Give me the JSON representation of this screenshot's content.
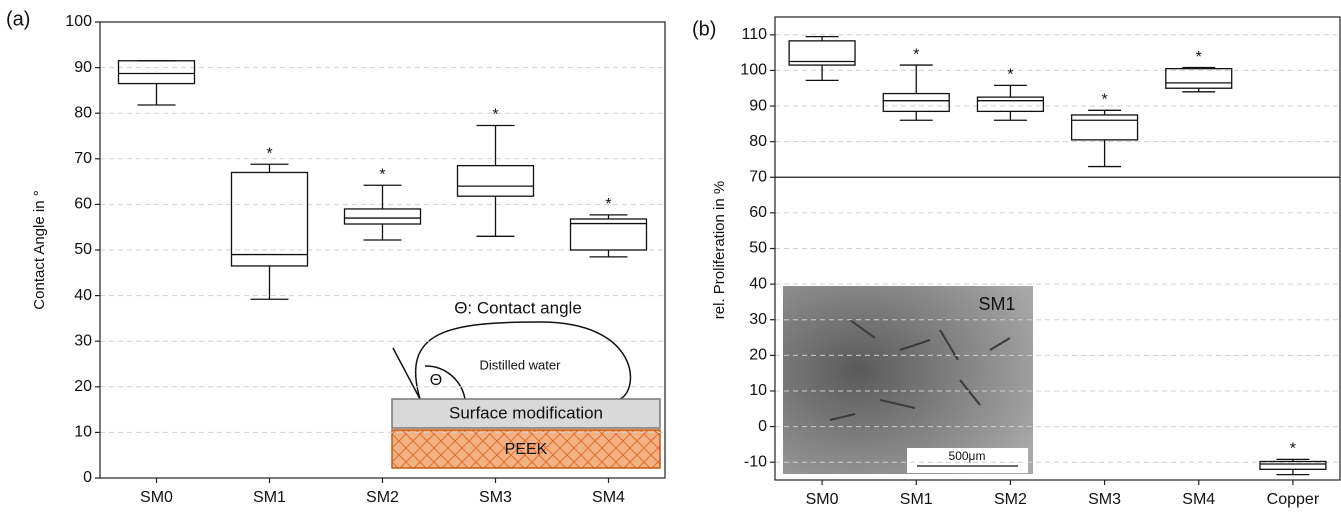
{
  "chart_data": [
    {
      "type": "box",
      "panel_label": "(a)",
      "y_label": "Contact Angle in °",
      "categories": [
        "SM0",
        "SM1",
        "SM2",
        "SM3",
        "SM4"
      ],
      "min": [
        81.8,
        39.2,
        52.2,
        53,
        48.5
      ],
      "q1": [
        86.5,
        46.5,
        55.7,
        61.8,
        50
      ],
      "median": [
        88.7,
        49,
        57,
        64,
        55.8
      ],
      "q3": [
        91.5,
        67,
        59,
        68.5,
        56.8
      ],
      "max": [
        91.5,
        68.8,
        64.2,
        77.3,
        57.7
      ],
      "markers": [
        null,
        "*",
        "*",
        "*",
        "*"
      ],
      "ylim": [
        0,
        100
      ],
      "yticks": [
        0,
        10,
        20,
        30,
        40,
        50,
        60,
        70,
        80,
        90,
        100
      ],
      "grid": true,
      "inset": {
        "title": "Θ: Contact angle",
        "drop": "Distilled water",
        "angle": "Θ",
        "layer": "Surface modification",
        "substrate": "PEEK"
      }
    },
    {
      "type": "box",
      "panel_label": "(b)",
      "y_label": "rel. Proliferation in %",
      "categories": [
        "SM0",
        "SM1",
        "SM2",
        "SM3",
        "SM4",
        "Copper"
      ],
      "min": [
        97.2,
        86,
        86,
        73,
        94,
        -13.5
      ],
      "q1": [
        101.5,
        88.5,
        88.5,
        80.5,
        95,
        -12
      ],
      "median": [
        102.5,
        91.5,
        91.5,
        86,
        96.5,
        -10.5
      ],
      "q3": [
        108.3,
        93.5,
        92.5,
        87.5,
        100.5,
        -9.8
      ],
      "max": [
        109.5,
        101.5,
        95.8,
        88.8,
        100.8,
        -9.2
      ],
      "markers": [
        null,
        "*",
        "*",
        "*",
        "*",
        "*"
      ],
      "hline": 70,
      "ylim": [
        -15,
        115
      ],
      "yticks": [
        -10,
        0,
        10,
        20,
        30,
        40,
        50,
        60,
        70,
        80,
        90,
        100,
        110
      ],
      "grid": true,
      "inset": {
        "label": "SM1",
        "scale": "500μm"
      }
    }
  ]
}
